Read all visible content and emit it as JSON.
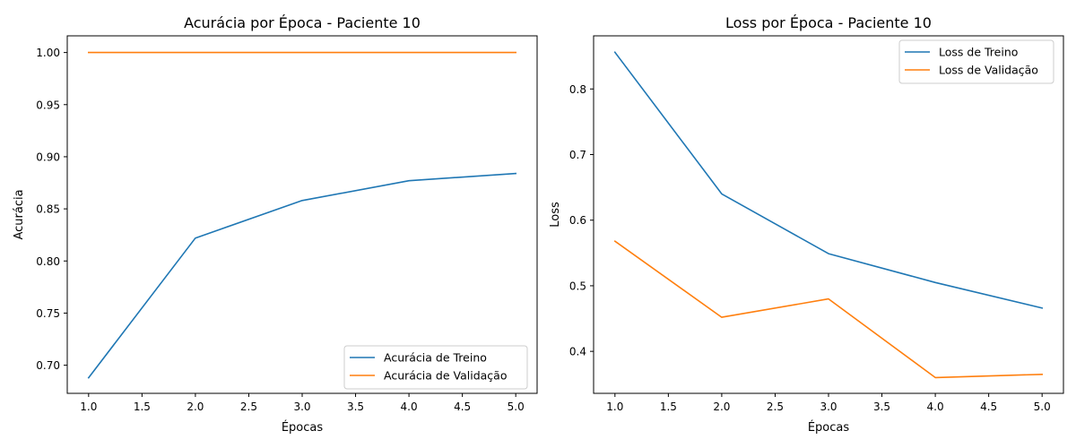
{
  "chart_data": [
    {
      "type": "line",
      "title": "Acurácia por Época - Paciente 10",
      "xlabel": "Épocas",
      "ylabel": "Acurácia",
      "x": [
        1,
        2,
        3,
        4,
        5
      ],
      "xlim": [
        0.8,
        5.2
      ],
      "ylim": [
        0.673,
        1.016
      ],
      "xticks": [
        "1.0",
        "1.5",
        "2.0",
        "2.5",
        "3.0",
        "3.5",
        "4.0",
        "4.5",
        "5.0"
      ],
      "xtick_values": [
        1.0,
        1.5,
        2.0,
        2.5,
        3.0,
        3.5,
        4.0,
        4.5,
        5.0
      ],
      "yticks": [
        "0.70",
        "0.75",
        "0.80",
        "0.85",
        "0.90",
        "0.95",
        "1.00"
      ],
      "ytick_values": [
        0.7,
        0.75,
        0.8,
        0.85,
        0.9,
        0.95,
        1.0
      ],
      "grid": false,
      "legend_position": "lower-right",
      "series": [
        {
          "name": "Acurácia de Treino",
          "color": "#1f77b4",
          "values": [
            0.688,
            0.822,
            0.858,
            0.877,
            0.884
          ]
        },
        {
          "name": "Acurácia de Validação",
          "color": "#ff7f0e",
          "values": [
            1.0,
            1.0,
            1.0,
            1.0,
            1.0
          ]
        }
      ]
    },
    {
      "type": "line",
      "title": "Loss por Época - Paciente 10",
      "xlabel": "Épocas",
      "ylabel": "Loss",
      "x": [
        1,
        2,
        3,
        4,
        5
      ],
      "xlim": [
        0.8,
        5.2
      ],
      "ylim": [
        0.336,
        0.881
      ],
      "xticks": [
        "1.0",
        "1.5",
        "2.0",
        "2.5",
        "3.0",
        "3.5",
        "4.0",
        "4.5",
        "5.0"
      ],
      "xtick_values": [
        1.0,
        1.5,
        2.0,
        2.5,
        3.0,
        3.5,
        4.0,
        4.5,
        5.0
      ],
      "yticks": [
        "0.4",
        "0.5",
        "0.6",
        "0.7",
        "0.8"
      ],
      "ytick_values": [
        0.4,
        0.5,
        0.6,
        0.7,
        0.8
      ],
      "grid": false,
      "legend_position": "upper-right",
      "series": [
        {
          "name": "Loss de Treino",
          "color": "#1f77b4",
          "values": [
            0.856,
            0.64,
            0.549,
            0.505,
            0.466
          ]
        },
        {
          "name": "Loss de Validação",
          "color": "#ff7f0e",
          "values": [
            0.568,
            0.452,
            0.48,
            0.36,
            0.365
          ]
        }
      ]
    }
  ]
}
